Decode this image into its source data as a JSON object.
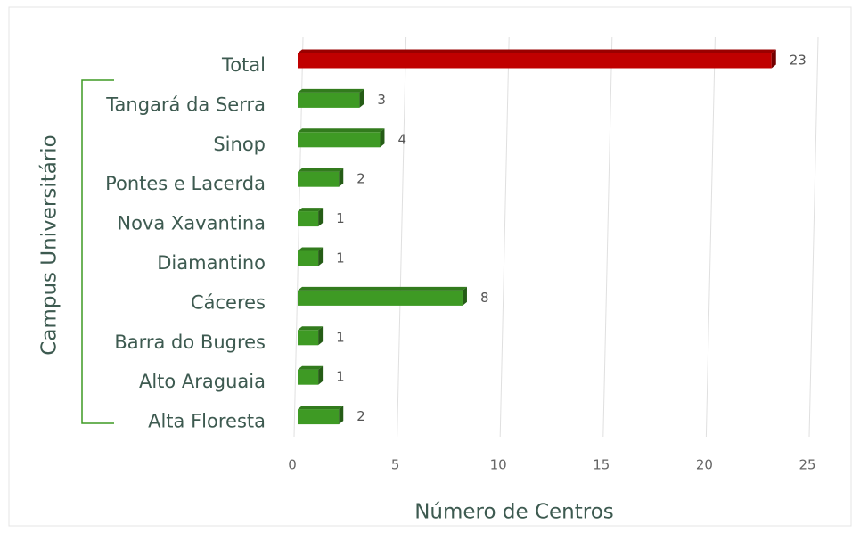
{
  "chart_data": {
    "type": "bar",
    "orientation": "horizontal",
    "categories": [
      "Total",
      "Tangará da Serra",
      "Sinop",
      "Pontes e Lacerda",
      "Nova Xavantina",
      "Diamantino",
      "Cáceres",
      "Barra do Bugres",
      "Alto Araguaia",
      "Alta Floresta"
    ],
    "values": [
      23,
      3,
      4,
      2,
      1,
      1,
      8,
      1,
      1,
      2
    ],
    "colors": [
      "#c00000",
      "#3e9a24",
      "#3e9a24",
      "#3e9a24",
      "#3e9a24",
      "#3e9a24",
      "#3e9a24",
      "#3e9a24",
      "#3e9a24",
      "#3e9a24"
    ],
    "xlim": [
      0,
      25
    ],
    "xticks": [
      0,
      5,
      10,
      15,
      20,
      25
    ],
    "grid": true,
    "xlabel": "Número de Centros",
    "ylabel": "Campus Universitário"
  }
}
